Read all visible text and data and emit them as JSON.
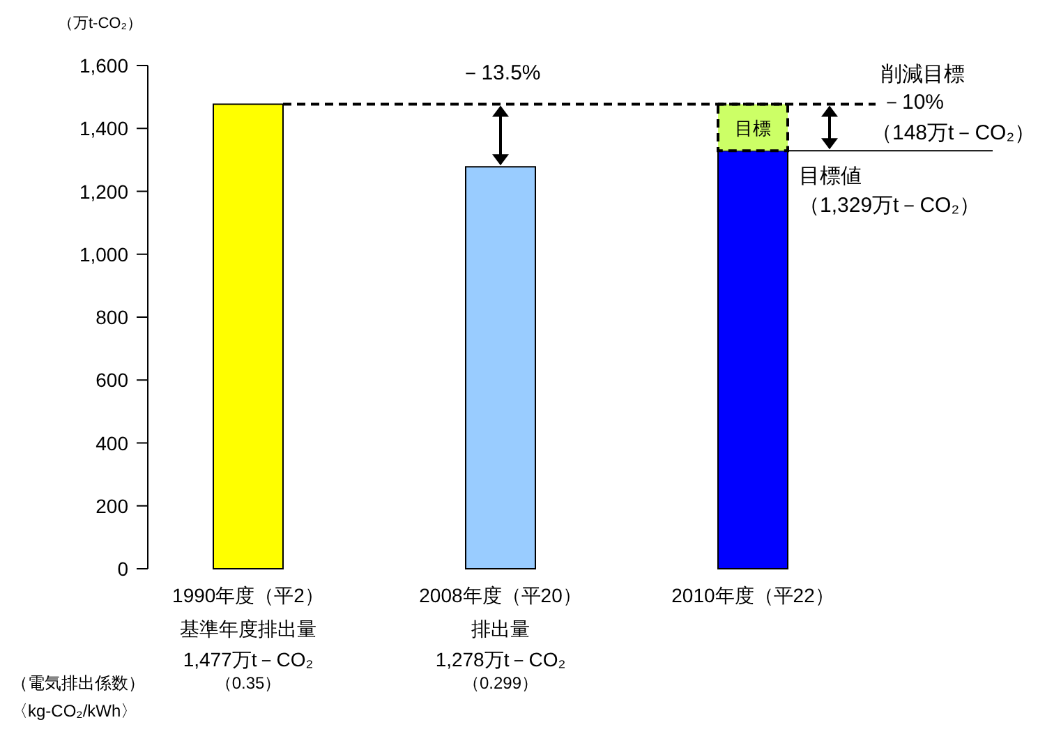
{
  "chart_data": {
    "type": "bar",
    "stacked": true,
    "ylabel": "（万t-CO₂）",
    "categories": [
      "1990年度（平2）",
      "2008年度（平20）",
      "2010年度（平22）"
    ],
    "series": [
      {
        "colors": [
          "#ffff00",
          "#99ccff",
          "#0000ff"
        ],
        "values": [
          1477,
          1278,
          1329
        ]
      },
      {
        "name": "目標",
        "color": "#ccff66",
        "line_style": "dashed",
        "values": [
          null,
          null,
          148
        ]
      }
    ],
    "ylim": [
      0,
      1600
    ],
    "yticks": [
      0,
      {
        "value": 200,
        "label": "200"
      },
      {
        "value": 400,
        "label": "400"
      },
      {
        "value": 600,
        "label": "600"
      },
      {
        "value": 800,
        "label": "800"
      },
      {
        "value": 1000,
        "label": "1,000"
      },
      {
        "value": 1200,
        "label": "1,200"
      },
      {
        "value": 1400,
        "label": "1,400"
      },
      {
        "value": 1600,
        "label": "1,600"
      }
    ],
    "ref_lines": [
      {
        "axis": "y",
        "value": 1477,
        "line_style": "dashed",
        "label": "削減目標"
      },
      {
        "axis": "y",
        "value": 1329,
        "line_style": "solid",
        "label": "目標値"
      }
    ],
    "annotations": [
      "－13.5%",
      "－10%",
      "（148万t－CO₂）",
      "（1,329万t－CO₂）",
      "基準年度排出量",
      "1,477万t－CO₂",
      "排出量",
      "1,278万t－CO₂",
      "（電気排出係数）",
      "〈kg-CO₂/kWh〉",
      "（0.35）",
      "（0.299）"
    ],
    "grid": false
  }
}
